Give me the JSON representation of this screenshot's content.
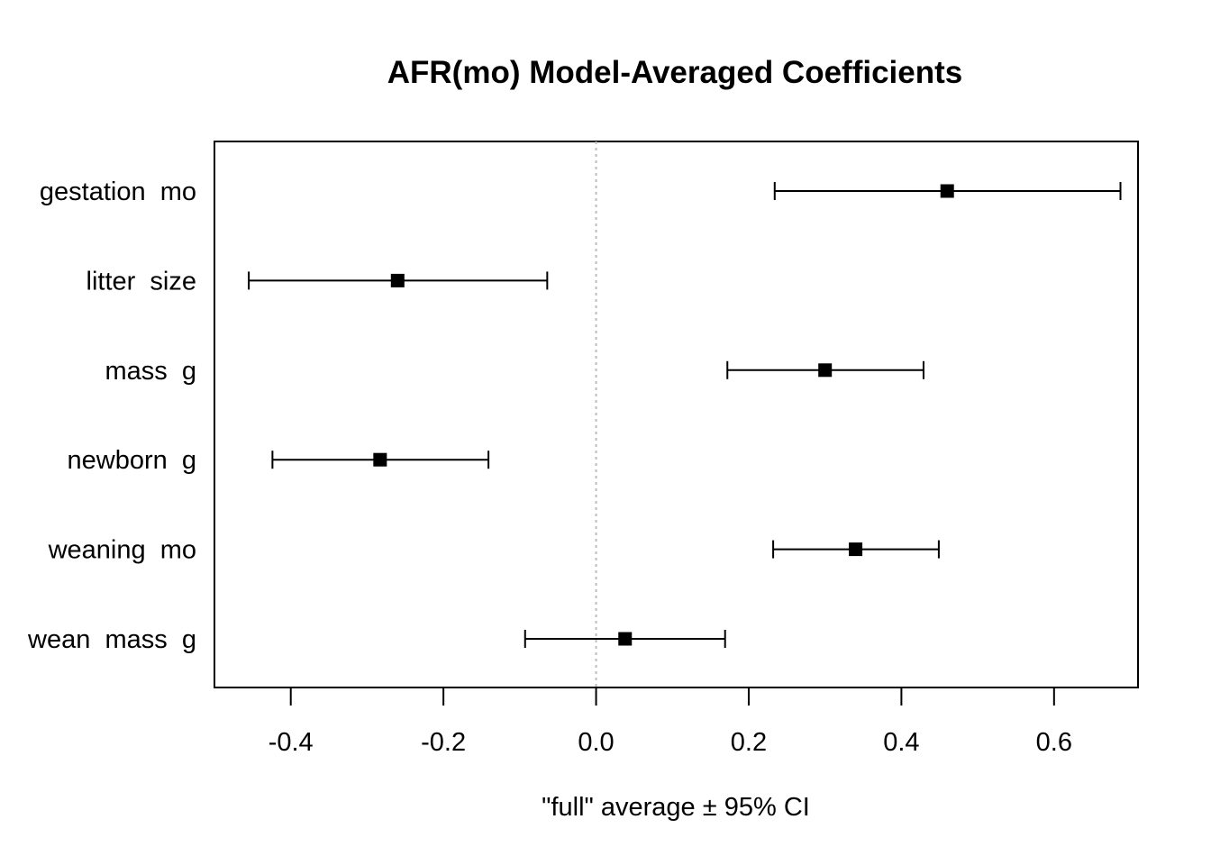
{
  "chart_data": {
    "type": "scatter",
    "subtype": "coefficient-plot-with-error-bars",
    "title": "AFR(mo) Model-Averaged Coefficients",
    "xlabel": "\"full\" average ± 95% CI",
    "ylabel": "",
    "xlim": [
      -0.5,
      0.71
    ],
    "x_ticks": [
      -0.4,
      -0.2,
      0.0,
      0.2,
      0.4,
      0.6
    ],
    "x_tick_labels": [
      "-0.4",
      "-0.2",
      "0.0",
      "0.2",
      "0.4",
      "0.6"
    ],
    "reference_line": 0.0,
    "reference_line_style": "dotted",
    "grid": false,
    "marker_color": "#000000",
    "categories": [
      "gestation  mo",
      "litter  size",
      "mass  g",
      "newborn  g",
      "weaning  mo",
      "wean  mass  g"
    ],
    "estimates": [
      0.46,
      -0.26,
      0.3,
      -0.283,
      0.34,
      0.038
    ],
    "ci_lower": [
      0.234,
      -0.455,
      0.172,
      -0.424,
      0.232,
      -0.093
    ],
    "ci_upper": [
      0.687,
      -0.064,
      0.429,
      -0.141,
      0.449,
      0.169
    ]
  }
}
